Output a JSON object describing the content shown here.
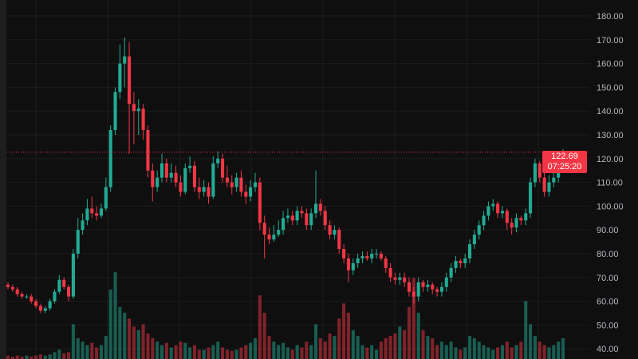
{
  "chart_data": {
    "type": "candlestick",
    "ylim": [
      35,
      182
    ],
    "y_ticks": [
      "180.00",
      "170.00",
      "160.00",
      "150.00",
      "140.00",
      "130.00",
      "120.00",
      "110.00",
      "100.00",
      "90.00",
      "80.00",
      "70.00",
      "60.00",
      "50.00",
      "40.00"
    ],
    "grid": true,
    "colors": {
      "up": "#22ab94",
      "down": "#f23645",
      "background": "#0f0f0f",
      "grid": "#1d1d1d",
      "axis_text": "#b2b5be"
    },
    "last_price": {
      "value": "122.69",
      "countdown": "07:25:20"
    },
    "open_first": 67,
    "close": [
      66,
      65,
      63,
      62,
      62,
      60,
      58,
      56,
      57,
      60,
      64,
      69,
      66,
      62,
      80,
      90,
      94,
      99,
      97,
      96,
      99,
      108,
      132,
      148,
      160,
      163,
      143,
      140,
      141,
      132,
      115,
      108,
      112,
      118,
      112,
      114,
      110,
      106,
      116,
      117,
      108,
      106,
      108,
      104,
      118,
      120,
      112,
      110,
      108,
      112,
      106,
      104,
      108,
      110,
      93,
      88,
      86,
      88,
      90,
      95,
      96,
      94,
      98,
      97,
      92,
      97,
      101,
      98,
      92,
      88,
      90,
      82,
      78,
      73,
      76,
      78,
      79,
      78,
      80,
      80,
      78,
      74,
      70,
      69,
      70,
      68,
      64,
      62,
      68,
      66,
      67,
      65,
      64,
      66,
      70,
      74,
      77,
      76,
      78,
      84,
      88,
      92,
      96,
      100,
      101,
      97,
      98,
      93,
      91,
      95,
      94,
      97,
      110,
      118,
      112,
      106,
      110,
      112,
      116,
      122.69
    ],
    "high": [
      68,
      67,
      66,
      64,
      63,
      63,
      61,
      59,
      58,
      61,
      65,
      71,
      70,
      67,
      82,
      95,
      97,
      103,
      104,
      100,
      101,
      112,
      134,
      150,
      168,
      171,
      169,
      148,
      145,
      143,
      134,
      118,
      115,
      122,
      120,
      118,
      117,
      113,
      118,
      121,
      119,
      112,
      111,
      110,
      121,
      123,
      122,
      117,
      113,
      114,
      115,
      109,
      111,
      114,
      112,
      96,
      91,
      92,
      94,
      98,
      99,
      98,
      100,
      100,
      99,
      99,
      115,
      103,
      100,
      94,
      92,
      91,
      84,
      80,
      78,
      80,
      81,
      81,
      82,
      82,
      81,
      79,
      76,
      72,
      72,
      72,
      70,
      66,
      70,
      69,
      69,
      68,
      66,
      68,
      72,
      76,
      79,
      78,
      80,
      86,
      90,
      94,
      98,
      102,
      103,
      102,
      100,
      99,
      95,
      97,
      96,
      99,
      112,
      120,
      119,
      114,
      113,
      115,
      118,
      124
    ],
    "low": [
      65,
      64,
      62,
      61,
      61,
      59,
      57,
      55,
      55,
      56,
      59,
      63,
      65,
      60,
      61,
      78,
      88,
      92,
      95,
      94,
      95,
      98,
      106,
      130,
      145,
      150,
      122,
      126,
      130,
      128,
      112,
      102,
      106,
      110,
      110,
      110,
      108,
      104,
      105,
      114,
      106,
      103,
      104,
      101,
      103,
      116,
      110,
      108,
      105,
      106,
      104,
      101,
      102,
      106,
      90,
      78,
      84,
      85,
      87,
      88,
      93,
      92,
      92,
      95,
      90,
      90,
      95,
      96,
      90,
      86,
      86,
      80,
      76,
      68,
      71,
      74,
      76,
      77,
      76,
      78,
      77,
      72,
      68,
      67,
      67,
      66,
      62,
      59,
      60,
      64,
      64,
      63,
      62,
      62,
      64,
      68,
      72,
      74,
      74,
      76,
      82,
      86,
      90,
      94,
      98,
      95,
      95,
      90,
      88,
      89,
      92,
      92,
      95,
      108,
      110,
      104,
      104,
      108,
      110,
      115
    ],
    "volume": [
      3,
      2,
      3,
      2,
      3,
      2,
      3,
      4,
      3,
      4,
      6,
      8,
      5,
      6,
      30,
      18,
      15,
      12,
      14,
      10,
      12,
      20,
      60,
      75,
      45,
      40,
      35,
      28,
      25,
      30,
      22,
      18,
      15,
      12,
      14,
      10,
      12,
      15,
      14,
      10,
      12,
      8,
      8,
      10,
      12,
      15,
      10,
      8,
      7,
      8,
      10,
      12,
      14,
      18,
      55,
      40,
      20,
      15,
      12,
      14,
      10,
      8,
      12,
      10,
      15,
      12,
      30,
      18,
      15,
      22,
      20,
      35,
      48,
      40,
      25,
      20,
      12,
      10,
      12,
      8,
      15,
      18,
      20,
      22,
      28,
      25,
      45,
      70,
      40,
      25,
      20,
      18,
      12,
      15,
      12,
      15,
      10,
      8,
      10,
      20,
      18,
      15,
      12,
      10,
      8,
      10,
      12,
      15,
      10,
      12,
      15,
      50,
      30,
      20,
      15,
      12,
      10,
      12,
      15,
      18
    ]
  }
}
